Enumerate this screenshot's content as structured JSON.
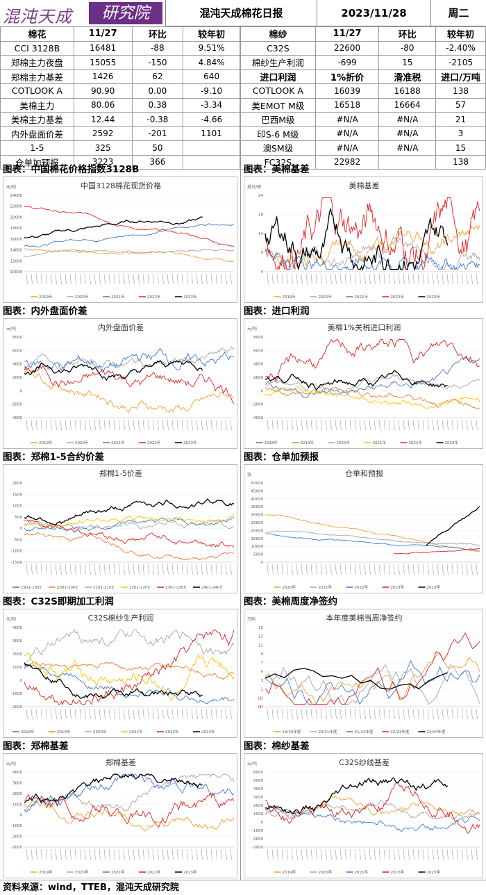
{
  "header": {
    "logo_left": "混沌天成",
    "logo_right": "研究院",
    "title": "混沌天成棉花日报",
    "date": "2023/11/28",
    "weekday": "周二"
  },
  "cotton_table": {
    "headers": [
      "棉花",
      "11/27",
      "环比",
      "较年初"
    ],
    "rows": [
      [
        "CCI 3128B",
        "16481",
        "-88",
        "9.51%"
      ],
      [
        "郑棉主力夜盘",
        "15055",
        "-150",
        "4.84%"
      ],
      [
        "郑棉主力基差",
        "1426",
        "62",
        "640"
      ],
      [
        "COTLOOK A",
        "90.90",
        "0.00",
        "-9.10"
      ],
      [
        "美棉主力",
        "80.06",
        "0.38",
        "-3.34"
      ],
      [
        "美棉主力基差",
        "12.44",
        "-0.38",
        "-4.66"
      ],
      [
        "内外盘面价差",
        "2592",
        "-201",
        "1101"
      ],
      [
        "1-5",
        "325",
        "50",
        ""
      ],
      [
        "仓单加预报",
        "3223",
        "366",
        ""
      ]
    ]
  },
  "yarn_table": {
    "headers": [
      "棉纱",
      "11/27",
      "环比",
      "较年初"
    ],
    "rows": [
      [
        "C32S",
        "22600",
        "-80",
        "-2.40%"
      ],
      [
        "棉纱生产利润",
        "-699",
        "15",
        "-2105"
      ]
    ],
    "import_headers": [
      "进口利润",
      "1%折价",
      "滑准税",
      "进口/万吨"
    ],
    "import_rows": [
      [
        "COTLOOK A",
        "16039",
        "16188",
        "138"
      ],
      [
        "美EMOT M级",
        "16518",
        "16664",
        "57"
      ],
      [
        "巴西M级",
        "#N/A",
        "#N/A",
        "21"
      ],
      [
        "印S-6 M级",
        "#N/A",
        "#N/A",
        "3"
      ],
      [
        "澳SM级",
        "#N/A",
        "#N/A",
        "15"
      ],
      [
        "FC32S",
        "22982",
        "",
        "138"
      ]
    ]
  },
  "sections": [
    {
      "label": "图表：中国棉花价格指数3128B",
      "chart_title": "中国3128棉花现货价格",
      "unit": "元/吨",
      "yticks": [
        "24000",
        "22000",
        "20000",
        "18000",
        "16000",
        "14000",
        "12000",
        "10000"
      ],
      "legend": [
        "2019年",
        "2020年",
        "2021年",
        "2022年",
        "2023年"
      ]
    },
    {
      "label": "图表：美棉基差",
      "chart_title": "美棉基差",
      "unit": "美分/磅",
      "yticks": [
        "24",
        "19",
        "14",
        "9",
        "4"
      ],
      "legend": [
        "2019年",
        "2020年",
        "2021年",
        "2022年",
        "2023年"
      ]
    },
    {
      "label": "图表：内外盘面价差",
      "chart_title": "内外盘面价差",
      "unit": "元/吨",
      "yticks": [
        "8000",
        "6000",
        "4000",
        "2000",
        "0",
        "-2000",
        "-4000"
      ],
      "legend": [
        "2019年",
        "2020年",
        "2021年",
        "2022年",
        "2023年"
      ]
    },
    {
      "label": "图表：进口利润",
      "chart_title": "美棉1%关税进口利润",
      "unit": "元/吨",
      "yticks": [
        "8000",
        "6000",
        "4000",
        "2000",
        "0",
        "-2000",
        "-4000"
      ],
      "legend": [
        "2018年",
        "2019年",
        "2020年",
        "2021年",
        "2022年",
        "2023年"
      ]
    },
    {
      "label": "图表：郑棉1-5合约价差",
      "chart_title": "郑棉1-5价差",
      "unit": "",
      "yticks": [
        "2000",
        "1500",
        "1000",
        "500",
        "0",
        "-500",
        "-1000",
        "-1500"
      ],
      "legend": [
        "1901-1905",
        "2001-2005",
        "2101-2105",
        "2201-2205",
        "2301-2305",
        "2401-2405"
      ]
    },
    {
      "label": "图表：仓单加预报",
      "chart_title": "仓单和预报",
      "unit": "张",
      "yticks": [
        "50000",
        "45000",
        "40000",
        "35000",
        "30000",
        "25000",
        "20000",
        "15000",
        "10000",
        "5000",
        "0"
      ],
      "legend": [
        "2020年",
        "2021年",
        "2022年",
        "2023年",
        "2019年"
      ]
    },
    {
      "label": "图表：C32S即期加工利润",
      "chart_title": "C32S棉纱生产利润",
      "unit": "元/吨",
      "yticks": [
        "4000",
        "3000",
        "2000",
        "1000",
        "0",
        "-1000",
        "-2000"
      ],
      "legend": [
        "2018年",
        "2019年",
        "2020年",
        "2021年",
        "2022年",
        "2023年"
      ]
    },
    {
      "label": "图表：美棉周度净签约",
      "chart_title": "本年度美棉当周净签约",
      "unit": "万吨",
      "yticks": [
        "15",
        "13",
        "11",
        "9",
        "7",
        "5",
        "3",
        "1",
        "(2)",
        "(4)"
      ],
      "legend": [
        "19/20年度",
        "20/21年度",
        "21/22年度",
        "22/23年度",
        "23/24年度"
      ]
    },
    {
      "label": "图表：郑棉基差",
      "chart_title": "郑棉基差",
      "unit": "元/吨",
      "yticks": [
        "4000",
        "3000",
        "2000",
        "1000",
        "0",
        "-1000",
        "-2000",
        "-3000"
      ],
      "legend": [
        "2019年",
        "2020年",
        "2021年",
        "2022年",
        "2023年"
      ]
    },
    {
      "label": "图表：棉纱基差",
      "chart_title": "C32S纱线基差",
      "unit": "元/吨",
      "yticks": [
        "6000",
        "5000",
        "4000",
        "3000",
        "2000",
        "1000",
        "0",
        "-1000",
        "-2000",
        "-3000"
      ],
      "legend": [
        "2019年",
        "2020年",
        "2021年",
        "2022年",
        "2023年"
      ]
    }
  ],
  "colors": {
    "2018": "#4472c4",
    "2019": "#f0a030",
    "2020": "#a0a0a0",
    "2021": "#ffc000",
    "2022": "#e02020",
    "2023": "#000000",
    "blue": "#3a78d8",
    "orange": "#ed7d31"
  },
  "footer": "资料来源：wind，TTEB，混沌天成研究院"
}
